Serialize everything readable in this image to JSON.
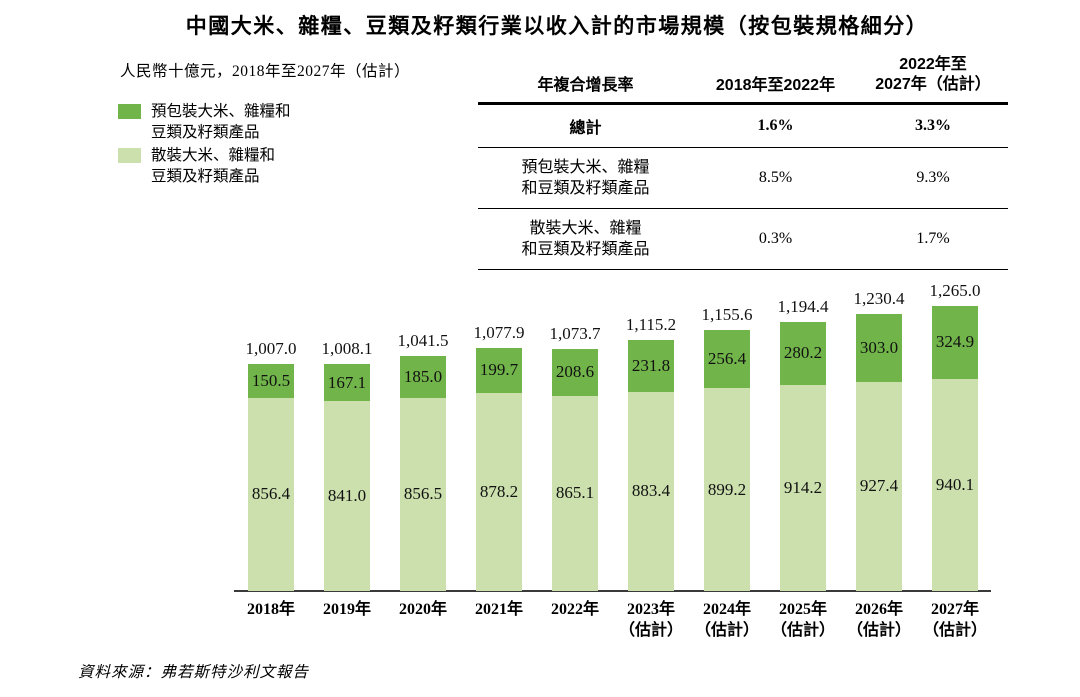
{
  "title": "中國大米、雜糧、豆類及籽類行業以收入計的市場規模（按包裝規格細分）",
  "subtitle": "人民幣十億元，2018年至2027年（估計）",
  "legend": [
    {
      "line1": "預包裝大米、雜糧和",
      "line2": "豆類及籽類產品",
      "color": "#71b54a"
    },
    {
      "line1": "散裝大米、雜糧和",
      "line2": "豆類及籽類產品",
      "color": "#cbe0ad"
    }
  ],
  "cagr_table": {
    "header": {
      "col1": "年複合增長率",
      "col2": "2018年至2022年",
      "col3_line1": "2022年至",
      "col3_line2": "2027年（估計）"
    },
    "rows": [
      {
        "label": "總計",
        "col2": "1.6%",
        "col3": "3.3%"
      },
      {
        "line1": "預包裝大米、雜糧",
        "line2": "和豆類及籽類產品",
        "col2": "8.5%",
        "col3": "9.3%"
      },
      {
        "line1": "散裝大米、雜糧",
        "line2": "和豆類及籽類產品",
        "col2": "0.3%",
        "col3": "1.7%"
      }
    ]
  },
  "chart_data": {
    "type": "bar",
    "stacked": true,
    "title": "中國大米、雜糧、豆類及籽類行業以收入計的市場規模（按包裝規格細分）",
    "unit_label": "人民幣十億元",
    "value_axis_visible": false,
    "categories": [
      "2018年",
      "2019年",
      "2020年",
      "2021年",
      "2022年",
      "2023年（估計）",
      "2024年（估計）",
      "2025年（估計）",
      "2026年（估計）",
      "2027年（估計）"
    ],
    "category_label_lines": [
      [
        "2018年"
      ],
      [
        "2019年"
      ],
      [
        "2020年"
      ],
      [
        "2021年"
      ],
      [
        "2022年"
      ],
      [
        "2023年",
        "（估計）"
      ],
      [
        "2024年",
        "（估計）"
      ],
      [
        "2025年",
        "（估計）"
      ],
      [
        "2026年",
        "（估計）"
      ],
      [
        "2027年",
        "（估計）"
      ]
    ],
    "series": [
      {
        "name": "散裝大米、雜糧和豆類及籽類產品",
        "color": "#cbe0ad",
        "values": [
          856.4,
          841.0,
          856.5,
          878.2,
          865.1,
          883.4,
          899.2,
          914.2,
          927.4,
          940.1
        ],
        "labels": [
          "856.4",
          "841.0",
          "856.5",
          "878.2",
          "865.1",
          "883.4",
          "899.2",
          "914.2",
          "927.4",
          "940.1"
        ]
      },
      {
        "name": "預包裝大米、雜糧和豆類及籽類產品",
        "color": "#71b54a",
        "values": [
          150.5,
          167.1,
          185.0,
          199.7,
          208.6,
          231.8,
          256.4,
          280.2,
          303.0,
          324.9
        ],
        "labels": [
          "150.5",
          "167.1",
          "185.0",
          "199.7",
          "208.6",
          "231.8",
          "256.4",
          "280.2",
          "303.0",
          "324.9"
        ]
      }
    ],
    "totals": [
      1007.0,
      1008.1,
      1041.5,
      1077.9,
      1073.7,
      1115.2,
      1155.6,
      1194.4,
      1230.4,
      1265.0
    ],
    "totals_formatted": [
      "1,007.0",
      "1,008.1",
      "1,041.5",
      "1,077.9",
      "1,073.7",
      "1,115.2",
      "1,155.6",
      "1,194.4",
      "1,230.4",
      "1,265.0"
    ]
  },
  "source": "資料來源：弗若斯特沙利文報告"
}
